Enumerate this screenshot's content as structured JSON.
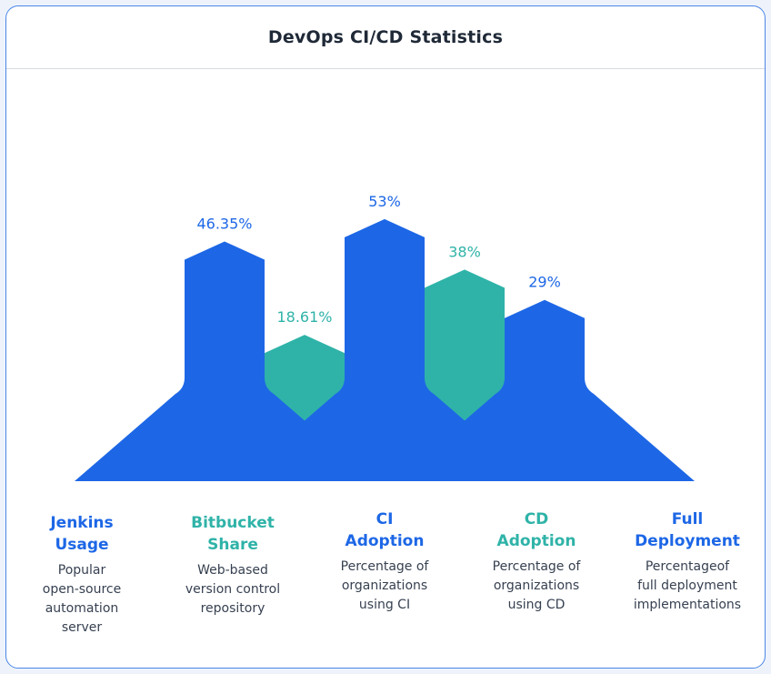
{
  "title": "DevOps CI/CD Statistics",
  "colors": {
    "blue": "#1d67e6",
    "teal": "#2fb3a8"
  },
  "chart_data": {
    "type": "bar",
    "title": "DevOps CI/CD Statistics",
    "categories": [
      "Jenkins Usage",
      "Bitbucket Share",
      "CI Adoption",
      "CD Adoption",
      "Full Deployment"
    ],
    "values": [
      46.35,
      18.61,
      53,
      38,
      29
    ],
    "value_labels": [
      "46.35%",
      "18.61%",
      "53%",
      "38%",
      "29%"
    ],
    "unit": "%",
    "bar_colors": [
      "blue",
      "teal",
      "blue",
      "teal",
      "blue"
    ]
  },
  "columns": [
    {
      "title_lines": [
        "Jenkins",
        "Usage"
      ],
      "desc_lines": [
        "Popular",
        "open-source",
        "automation",
        "server"
      ],
      "color": "blue"
    },
    {
      "title_lines": [
        "Bitbucket",
        "Share"
      ],
      "desc_lines": [
        "Web-based",
        "version control",
        "repository"
      ],
      "color": "teal"
    },
    {
      "title_lines": [
        "CI",
        "Adoption"
      ],
      "desc_lines": [
        "Percentage of",
        "organizations",
        "using CI"
      ],
      "color": "blue"
    },
    {
      "title_lines": [
        "CD",
        "Adoption"
      ],
      "desc_lines": [
        "Percentage of",
        "organizations",
        "using CD"
      ],
      "color": "teal"
    },
    {
      "title_lines": [
        "Full",
        "Deployment"
      ],
      "desc_lines": [
        "Percentageof",
        "full deployment",
        "implementations"
      ],
      "color": "blue"
    }
  ]
}
